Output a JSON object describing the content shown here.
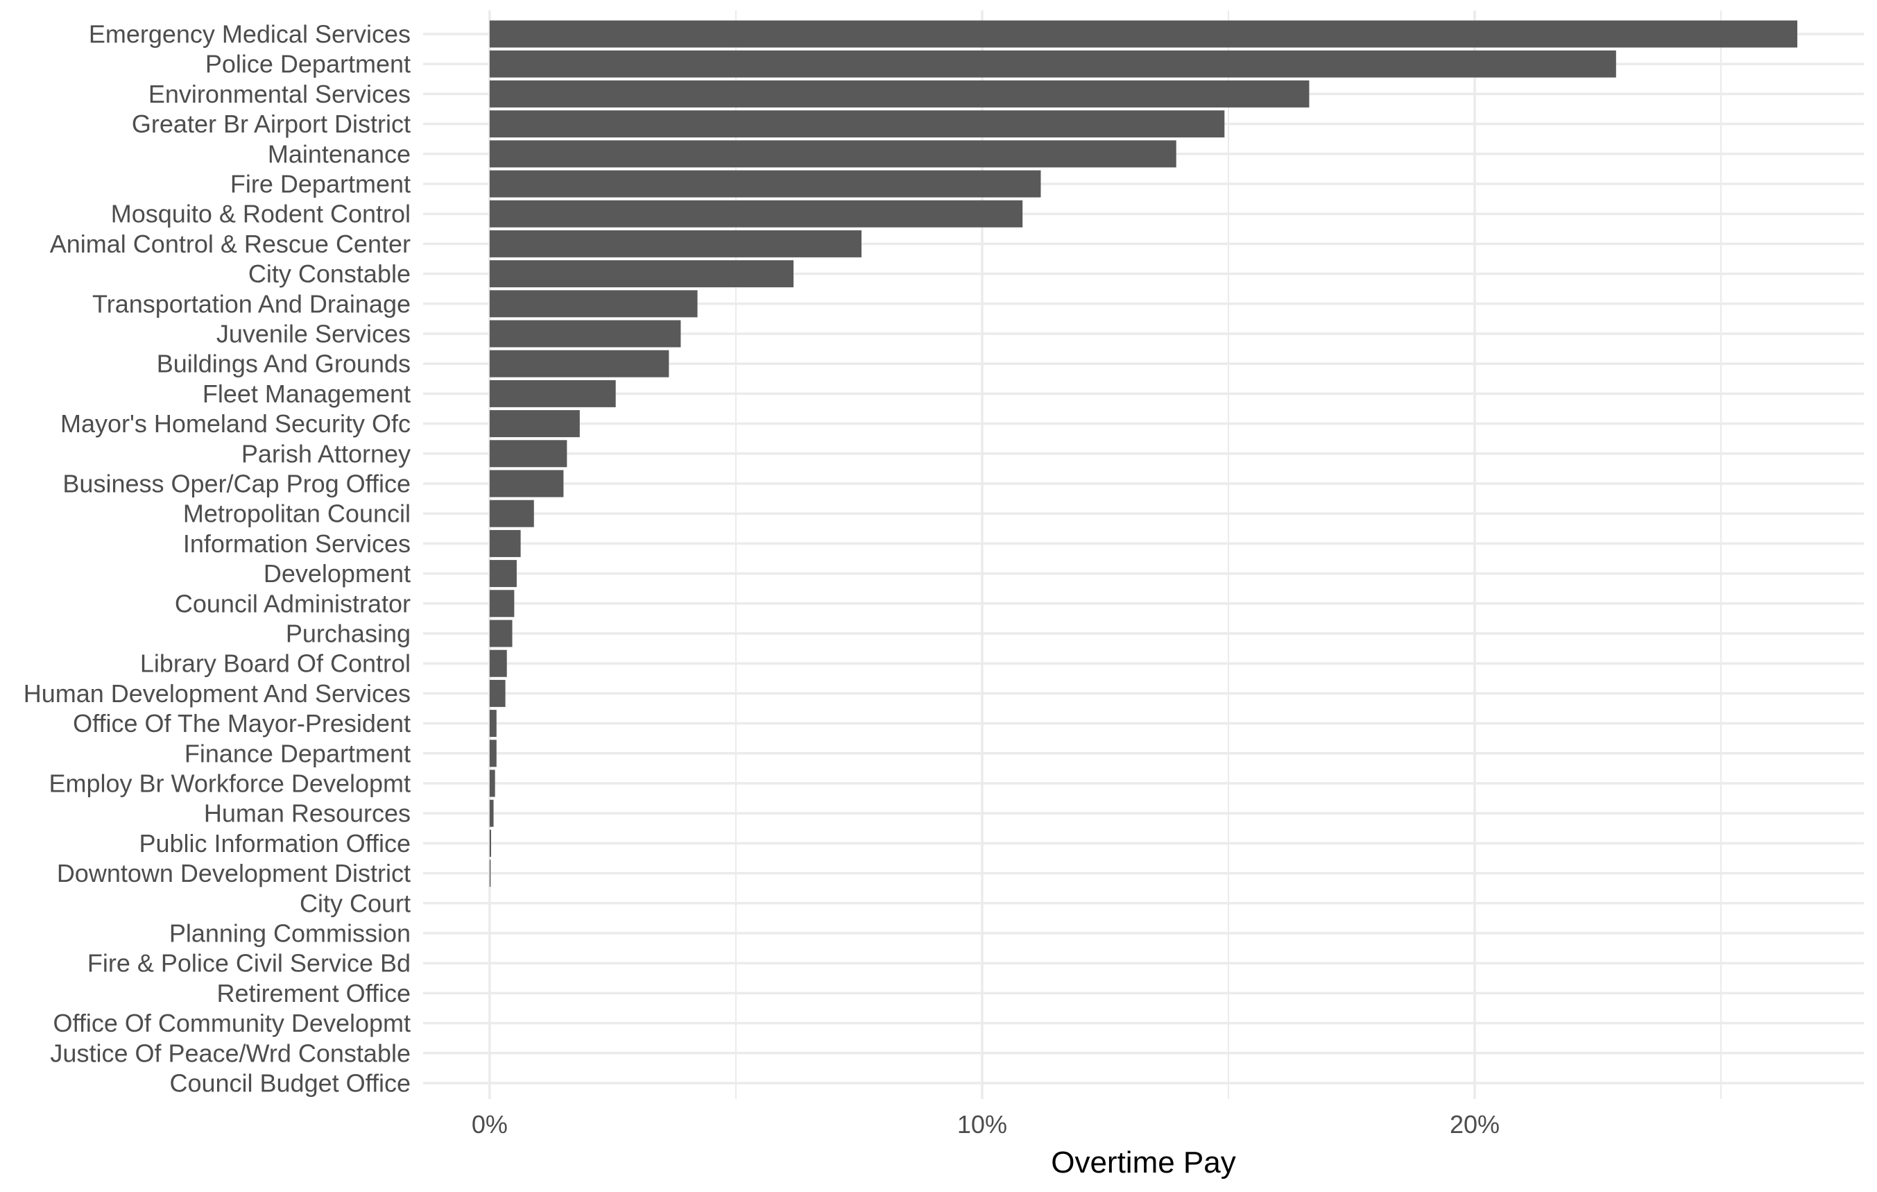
{
  "chart_data": {
    "type": "bar",
    "orientation": "horizontal",
    "title": "",
    "xlabel": "Overtime Pay",
    "ylabel": "",
    "xlim": [
      -0.0135,
      0.279
    ],
    "x_ticks": [
      {
        "value": 0,
        "label": "0%"
      },
      {
        "value": 0.1,
        "label": "10%"
      },
      {
        "value": 0.2,
        "label": "20%"
      }
    ],
    "minor_ticks": [
      0.05,
      0.15,
      0.25
    ],
    "grid": true,
    "legend": "none",
    "bar_color": "#595959",
    "grid_color": "#ebebeb",
    "categories": [
      "Emergency Medical Services",
      "Police Department",
      "Environmental Services",
      "Greater Br Airport District",
      "Maintenance",
      "Fire Department",
      "Mosquito & Rodent Control",
      "Animal Control & Rescue Center",
      "City Constable",
      "Transportation And Drainage",
      "Juvenile Services",
      "Buildings And Grounds",
      "Fleet Management",
      "Mayor's Homeland Security Ofc",
      "Parish Attorney",
      "Business Oper/Cap Prog Office",
      "Metropolitan Council",
      "Information Services",
      "Development",
      "Council Administrator",
      "Purchasing",
      "Library Board Of Control",
      "Human Development And Services",
      "Office Of The Mayor-President",
      "Finance Department",
      "Employ Br Workforce Developmt",
      "Human Resources",
      "Public Information Office",
      "Downtown Development District",
      "City Court",
      "Planning Commission",
      "Fire & Police Civil Service Bd",
      "Retirement Office",
      "Office Of Community Developmt",
      "Justice Of Peace/Wrd Constable",
      "Council Budget Office"
    ],
    "values": [
      0.2655,
      0.2287,
      0.1664,
      0.1492,
      0.1394,
      0.1119,
      0.1082,
      0.0755,
      0.0617,
      0.0422,
      0.0388,
      0.0364,
      0.0256,
      0.0183,
      0.0157,
      0.015,
      0.009,
      0.0063,
      0.0055,
      0.005,
      0.0046,
      0.0035,
      0.0032,
      0.0014,
      0.0014,
      0.0011,
      0.0008,
      0.0003,
      0.0002,
      0,
      0,
      0,
      0,
      0,
      0,
      0
    ]
  }
}
